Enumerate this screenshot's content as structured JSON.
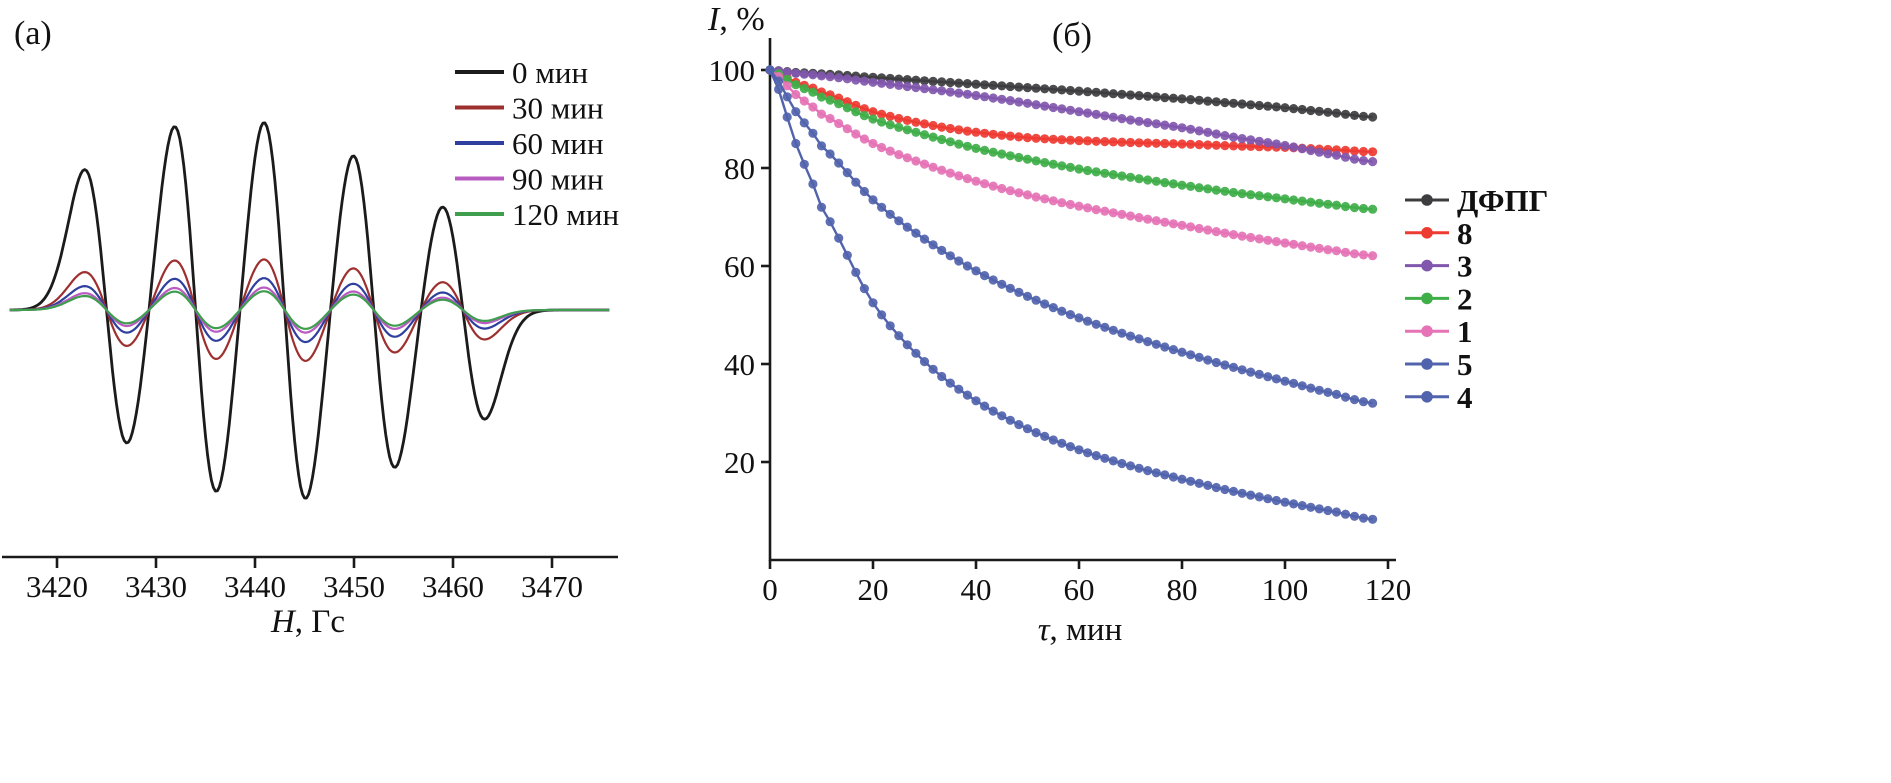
{
  "figure": {
    "panel_a_label": "(a)",
    "panel_b_label": "(б)"
  },
  "chart_data": [
    {
      "type": "line",
      "name": "epr-spectra",
      "panel_label": "(a)",
      "xlabel": "H, Гс",
      "x_ticks": [
        3420,
        3430,
        3440,
        3450,
        3460,
        3470
      ],
      "x_range": [
        3415.2,
        3475.8
      ],
      "line_centers_gauss": [
        3425,
        3434,
        3443,
        3452,
        3461
      ],
      "line_rel_amplitudes": [
        0.72,
        0.97,
        1.0,
        0.83,
        0.56
      ],
      "linewidth_gauss": 2.2,
      "grid": false,
      "legend_position": "top-right",
      "series": [
        {
          "name": "0 мин",
          "color": "#1b1b1b",
          "scale": 1.0
        },
        {
          "name": "30 мин",
          "color": "#9e2f2f",
          "scale": 0.27
        },
        {
          "name": "60 мин",
          "color": "#2f3f9e",
          "scale": 0.17
        },
        {
          "name": "90 мин",
          "color": "#b85cc2",
          "scale": 0.12
        },
        {
          "name": "120 мин",
          "color": "#3f9e4d",
          "scale": 0.1
        }
      ]
    },
    {
      "type": "line",
      "name": "radical-decay-kinetics",
      "panel_label": "(б)",
      "xlabel": "τ, мин",
      "ylabel": "I, %",
      "xlim": [
        0,
        123
      ],
      "ylim": [
        0,
        105
      ],
      "x_ticks": [
        0,
        20,
        40,
        60,
        80,
        100,
        120
      ],
      "y_ticks": [
        20,
        40,
        60,
        80,
        100
      ],
      "grid": false,
      "legend_position": "right",
      "x": [
        0,
        5,
        10,
        20,
        30,
        40,
        50,
        60,
        70,
        80,
        90,
        100,
        110,
        117
      ],
      "series": [
        {
          "name": "ДФПГ",
          "color": "#3d3d3f",
          "values": [
            100,
            99.5,
            99.2,
            98.5,
            97.8,
            97.1,
            96.4,
            95.7,
            94.9,
            94.1,
            93.2,
            92.3,
            91.2,
            90.4
          ]
        },
        {
          "name": "8",
          "color": "#ee3b32",
          "values": [
            100,
            97.5,
            95.5,
            91.5,
            89.0,
            87.3,
            86.2,
            85.6,
            85.2,
            84.9,
            84.5,
            84.2,
            83.7,
            83.3
          ]
        },
        {
          "name": "3",
          "color": "#8157ae",
          "values": [
            100,
            99.3,
            98.8,
            97.5,
            96.2,
            94.8,
            93.2,
            91.5,
            89.8,
            88.2,
            86.3,
            84.6,
            82.6,
            81.3
          ]
        },
        {
          "name": "2",
          "color": "#3fae49",
          "values": [
            100,
            97.0,
            94.5,
            90.0,
            86.8,
            84.0,
            81.8,
            79.8,
            78.1,
            76.5,
            75.0,
            73.7,
            72.4,
            71.6
          ]
        },
        {
          "name": "1",
          "color": "#e573b6",
          "values": [
            100,
            95.0,
            91.0,
            85.0,
            80.8,
            77.3,
            74.5,
            72.2,
            70.2,
            68.3,
            66.4,
            64.7,
            63.1,
            62.1
          ]
        },
        {
          "name": "5",
          "color": "#5163ac",
          "values": [
            100,
            91.5,
            84.5,
            73.5,
            65.5,
            59.0,
            53.8,
            49.4,
            45.7,
            42.4,
            39.3,
            36.5,
            33.8,
            32.0
          ]
        },
        {
          "name": "4",
          "color": "#5163ac",
          "values": [
            100,
            85.0,
            72.0,
            52.5,
            40.5,
            32.5,
            26.8,
            22.5,
            19.2,
            16.5,
            14.0,
            11.8,
            9.8,
            8.3
          ]
        }
      ]
    }
  ]
}
